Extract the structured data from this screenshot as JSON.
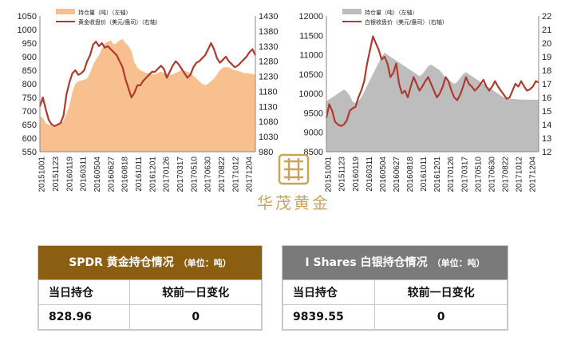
{
  "chart_data": [
    {
      "type": "area+line",
      "legend": [
        "持仓量（吨）（左轴）",
        "黄金收盘价（美元/盎司）（右轴）"
      ],
      "x_labels": [
        "20151001",
        "20151123",
        "20160119",
        "20160311",
        "20160504",
        "20160627",
        "20160818",
        "20161011",
        "20161201",
        "20170126",
        "20170317",
        "20170510",
        "20170630",
        "20170822",
        "20171012",
        "20171204"
      ],
      "y_left": {
        "ticks": [
          550,
          600,
          650,
          700,
          750,
          800,
          850,
          900,
          950,
          1000,
          1050
        ],
        "range": [
          550,
          1050
        ]
      },
      "y_right": {
        "ticks": [
          980,
          1030,
          1080,
          1130,
          1180,
          1230,
          1280,
          1330,
          1380,
          1430
        ],
        "range": [
          980,
          1430
        ]
      },
      "series": [
        {
          "name": "持仓量（吨）（左轴）",
          "kind": "area",
          "axis": "left",
          "color": "#f9c08f",
          "values": [
            680,
            675,
            655,
            650,
            645,
            640,
            648,
            655,
            665,
            690,
            720,
            770,
            800,
            810,
            812,
            815,
            820,
            840,
            870,
            890,
            905,
            930,
            950,
            955,
            960,
            945,
            950,
            960,
            965,
            950,
            940,
            920,
            880,
            860,
            850,
            845,
            840,
            840,
            838,
            835,
            840,
            845,
            840,
            838,
            833,
            835,
            840,
            845,
            850,
            848,
            845,
            840,
            830,
            820,
            810,
            800,
            795,
            800,
            810,
            820,
            835,
            850,
            860,
            862,
            860,
            855,
            850,
            848,
            845,
            840,
            840,
            838,
            836,
            835
          ]
        },
        {
          "name": "黄金收盘价（美元/盎司）（右轴）",
          "kind": "line",
          "axis": "right",
          "color": "#b03a2e",
          "values": [
            1130,
            1160,
            1120,
            1085,
            1070,
            1065,
            1070,
            1075,
            1100,
            1170,
            1210,
            1240,
            1250,
            1235,
            1240,
            1250,
            1280,
            1300,
            1335,
            1345,
            1330,
            1340,
            1325,
            1330,
            1320,
            1310,
            1300,
            1280,
            1260,
            1220,
            1190,
            1160,
            1175,
            1200,
            1200,
            1215,
            1225,
            1235,
            1245,
            1245,
            1255,
            1265,
            1255,
            1225,
            1245,
            1265,
            1280,
            1270,
            1255,
            1240,
            1225,
            1235,
            1260,
            1275,
            1280,
            1290,
            1300,
            1320,
            1340,
            1320,
            1290,
            1275,
            1285,
            1295,
            1280,
            1270,
            1260,
            1265,
            1275,
            1285,
            1295,
            1310,
            1320,
            1300
          ]
        }
      ]
    },
    {
      "type": "area+line",
      "legend": [
        "持仓量（吨）（左轴）",
        "白银收盘价（美元/盎司）（右轴）"
      ],
      "x_labels": [
        "20151001",
        "20151123",
        "20160119",
        "20160311",
        "20160504",
        "20160627",
        "20160818",
        "20161011",
        "20161201",
        "20170126",
        "20170317",
        "20170510",
        "20170630",
        "20170822",
        "20171012",
        "20171204"
      ],
      "y_left": {
        "ticks": [
          8500,
          9000,
          9500,
          10000,
          10500,
          11000,
          11500,
          12000
        ],
        "range": [
          8500,
          12000
        ]
      },
      "y_right": {
        "ticks": [
          12,
          13,
          14,
          15,
          16,
          17,
          18,
          19,
          20,
          21,
          22
        ],
        "range": [
          12,
          22
        ]
      },
      "series": [
        {
          "name": "持仓量（吨）（左轴）",
          "kind": "area",
          "axis": "left",
          "color": "#bdbdbd",
          "values": [
            9800,
            9850,
            9900,
            9950,
            10000,
            10050,
            10100,
            10050,
            9950,
            9800,
            9750,
            9800,
            9900,
            10050,
            10200,
            10350,
            10500,
            10650,
            10800,
            10950,
            11050,
            11000,
            10950,
            10900,
            10850,
            10800,
            10750,
            10700,
            10650,
            10600,
            10550,
            10500,
            10450,
            10500,
            10600,
            10700,
            10750,
            10700,
            10650,
            10600,
            10500,
            10400,
            10350,
            10300,
            10250,
            10300,
            10400,
            10500,
            10550,
            10500,
            10450,
            10400,
            10350,
            10300,
            10250,
            10200,
            10150,
            10100,
            10050,
            10000,
            9950,
            9900,
            9870,
            9860,
            9860,
            9855,
            9850,
            9845,
            9842,
            9840,
            9840,
            9840,
            9840,
            9840
          ]
        },
        {
          "name": "白银收盘价（美元/盎司）（右轴）",
          "kind": "line",
          "axis": "right",
          "color": "#b03a2e",
          "values": [
            14.5,
            15.5,
            15.0,
            14.2,
            14.0,
            13.9,
            14.0,
            14.3,
            15.0,
            15.2,
            15.3,
            16.0,
            16.5,
            17.2,
            18.5,
            19.5,
            20.5,
            20.0,
            19.5,
            18.8,
            19.0,
            18.5,
            17.5,
            17.8,
            18.5,
            17.0,
            16.3,
            16.5,
            16.0,
            16.8,
            17.5,
            17.0,
            16.5,
            16.8,
            17.2,
            17.5,
            17.0,
            16.5,
            16.0,
            16.3,
            16.8,
            17.5,
            17.2,
            16.5,
            16.0,
            15.8,
            16.2,
            16.8,
            17.5,
            17.0,
            16.8,
            16.5,
            16.7,
            17.0,
            17.3,
            16.8,
            16.5,
            16.8,
            17.2,
            16.8,
            16.5,
            16.2,
            15.9,
            16.0,
            16.5,
            17.0,
            16.8,
            17.2,
            16.8,
            16.5,
            16.6,
            16.8,
            17.2,
            17.1
          ]
        }
      ]
    }
  ],
  "logo": {
    "text": "华茂黄金"
  },
  "colors": {
    "gold_header": "#8b5f12",
    "silver_header": "#7a7a7a"
  },
  "spdr": {
    "title": "SPDR 黄金持仓情况",
    "unit": "（单位：吨）",
    "col1": "当日持仓",
    "col2": "较前一日变化",
    "holding": "828.96",
    "change": "0"
  },
  "ishares": {
    "title": "I Shares 白银持仓情况",
    "unit": "（单位：吨）",
    "col1": "当日持仓",
    "col2": "较前一日变化",
    "holding": "9839.55",
    "change": "0"
  }
}
